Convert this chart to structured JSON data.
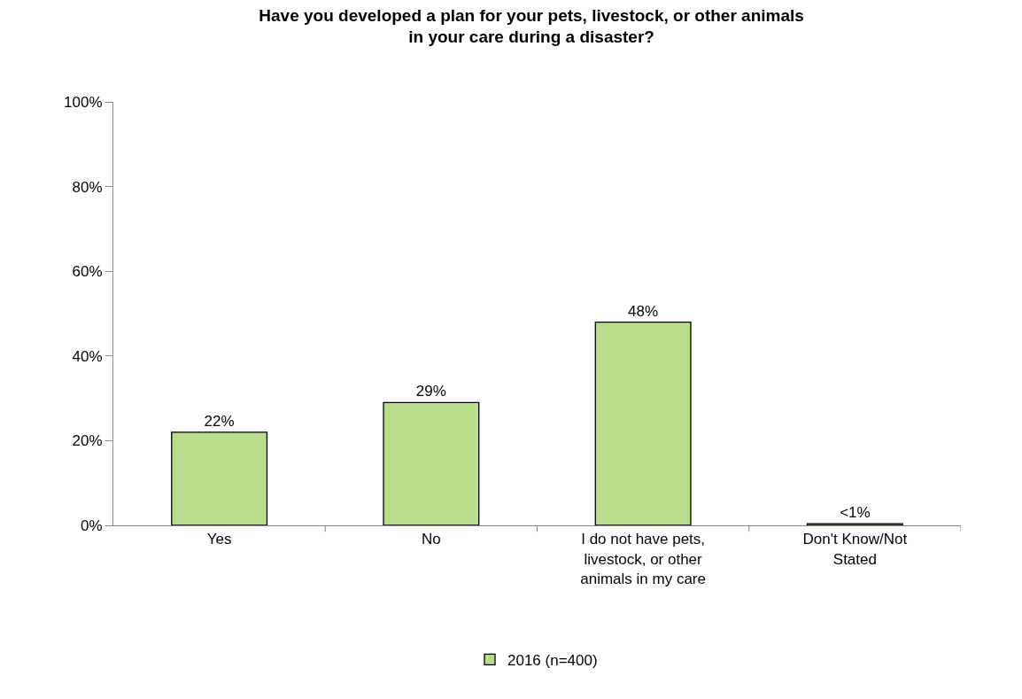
{
  "chart_data": {
    "type": "bar",
    "title": "Have you developed a plan for your pets, livestock, or other animals in your care during a disaster?",
    "categories": [
      "Yes",
      "No",
      "I do not have pets, livestock, or other animals in my care",
      "Don't Know/Not Stated"
    ],
    "series": [
      {
        "name": "2016 (n=400)",
        "color": "#b8de8c",
        "values": [
          22,
          29,
          48,
          0.4
        ],
        "value_labels": [
          "22%",
          "29%",
          "48%",
          "<1%"
        ]
      }
    ],
    "ylim": [
      0,
      100
    ],
    "yticks": [
      {
        "value": 0,
        "label": "0%"
      },
      {
        "value": 20,
        "label": "20%"
      },
      {
        "value": 40,
        "label": "40%"
      },
      {
        "value": 60,
        "label": "60%"
      },
      {
        "value": 80,
        "label": "80%"
      },
      {
        "value": 100,
        "label": "100%"
      }
    ],
    "grid": false,
    "legend": "bottom"
  }
}
